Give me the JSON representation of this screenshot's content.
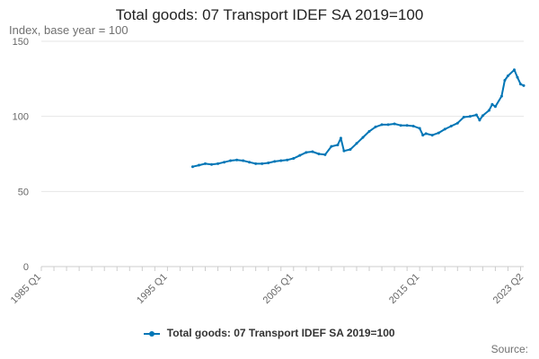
{
  "chart_data": {
    "type": "line",
    "title": "Total goods: 07 Transport IDEF SA 2019=100",
    "subtitle": "Index, base year = 100",
    "ylim": [
      0,
      150
    ],
    "y_ticks": [
      0,
      50,
      100,
      150
    ],
    "x_range": [
      "1985 Q1",
      "2023 Q2"
    ],
    "x_ticks": [
      "1985 Q1",
      "1995 Q1",
      "2005 Q1",
      "2015 Q1",
      "2023 Q2"
    ],
    "grid": true,
    "legend_position": "bottom-center",
    "series": [
      {
        "name": "Total goods: 07 Transport IDEF SA 2019=100",
        "color": "#0076b6",
        "x": [
          1997.0,
          1997.5,
          1998.0,
          1998.5,
          1999.0,
          1999.5,
          2000.0,
          2000.5,
          2001.0,
          2001.5,
          2002.0,
          2002.5,
          2003.0,
          2003.5,
          2004.0,
          2004.5,
          2005.0,
          2005.5,
          2006.0,
          2006.5,
          2007.0,
          2007.5,
          2008.0,
          2008.5,
          2008.75,
          2009.0,
          2009.5,
          2010.0,
          2010.5,
          2011.0,
          2011.5,
          2012.0,
          2012.5,
          2013.0,
          2013.5,
          2014.0,
          2014.5,
          2015.0,
          2015.25,
          2015.5,
          2016.0,
          2016.5,
          2017.0,
          2017.5,
          2018.0,
          2018.5,
          2019.0,
          2019.5,
          2019.75,
          2020.0,
          2020.5,
          2020.75,
          2021.0,
          2021.5,
          2021.75,
          2022.0,
          2022.5,
          2022.75,
          2023.0,
          2023.25
        ],
        "values": [
          66.5,
          67.5,
          68.5,
          68,
          68.5,
          69.5,
          70.5,
          71,
          70.5,
          69.5,
          68.5,
          68.5,
          69,
          70,
          70.5,
          71,
          72,
          74,
          76,
          76.5,
          75,
          74.5,
          80,
          81,
          85.5,
          77,
          78,
          82,
          86,
          90,
          93,
          94.5,
          94.5,
          95,
          94,
          94,
          93.5,
          92,
          87.5,
          88.5,
          87.5,
          89,
          91.5,
          93.5,
          95.5,
          99.5,
          100,
          101,
          97.5,
          100.5,
          104,
          108,
          106.5,
          113.5,
          124,
          127,
          131,
          126,
          121.5,
          120.5
        ]
      }
    ]
  },
  "source_label": "Source:"
}
